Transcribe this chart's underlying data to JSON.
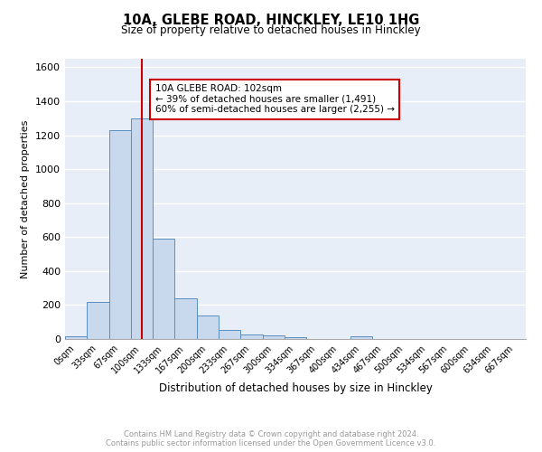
{
  "title": "10A, GLEBE ROAD, HINCKLEY, LE10 1HG",
  "subtitle": "Size of property relative to detached houses in Hinckley",
  "xlabel": "Distribution of detached houses by size in Hinckley",
  "ylabel": "Number of detached properties",
  "bin_labels": [
    "0sqm",
    "33sqm",
    "67sqm",
    "100sqm",
    "133sqm",
    "167sqm",
    "200sqm",
    "233sqm",
    "267sqm",
    "300sqm",
    "334sqm",
    "367sqm",
    "400sqm",
    "434sqm",
    "467sqm",
    "500sqm",
    "534sqm",
    "567sqm",
    "600sqm",
    "634sqm",
    "667sqm"
  ],
  "bar_values": [
    15,
    220,
    1230,
    1300,
    590,
    240,
    140,
    55,
    28,
    22,
    10,
    0,
    0,
    18,
    0,
    0,
    0,
    0,
    0,
    0,
    0
  ],
  "bar_color": "#c9d9ed",
  "bar_edge_color": "#5a8fc0",
  "red_line_x": 3,
  "annotation_title": "10A GLEBE ROAD: 102sqm",
  "annotation_line1": "← 39% of detached houses are smaller (1,491)",
  "annotation_line2": "60% of semi-detached houses are larger (2,255) →",
  "annotation_box_color": "#ffffff",
  "annotation_box_edge": "#cc0000",
  "ylim": [
    0,
    1650
  ],
  "yticks": [
    0,
    200,
    400,
    600,
    800,
    1000,
    1200,
    1400,
    1600
  ],
  "footer_line1": "Contains HM Land Registry data © Crown copyright and database right 2024.",
  "footer_line2": "Contains public sector information licensed under the Open Government Licence v3.0.",
  "grid_color": "#ffffff",
  "bg_color": "#e8eef7"
}
